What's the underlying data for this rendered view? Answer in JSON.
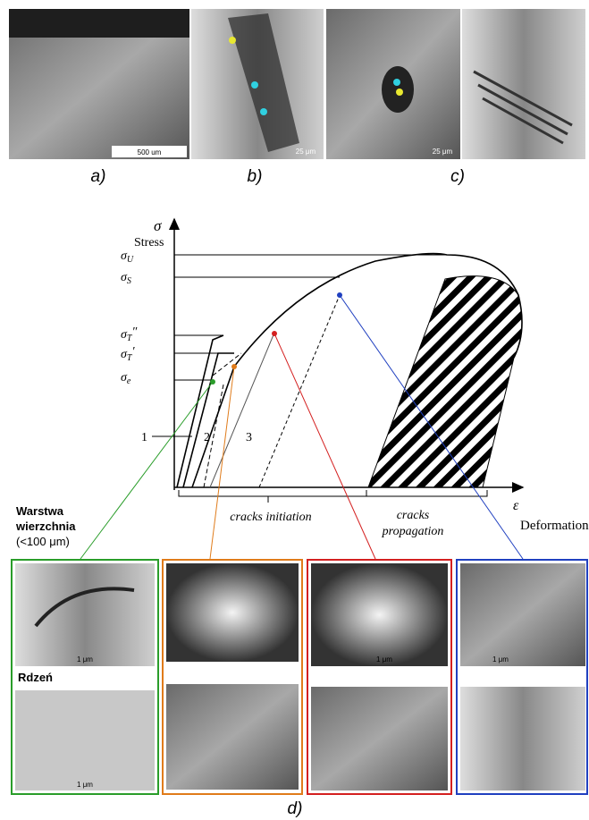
{
  "top_panels": {
    "labels": [
      "a)",
      "b)",
      "c)"
    ],
    "scale_bars": [
      "500 um",
      "25 μm",
      "25 μm"
    ]
  },
  "diagram": {
    "y_symbol": "σ",
    "y_label": "Stress",
    "x_symbol": "ε",
    "x_label": "Deformation",
    "stress_levels": [
      {
        "main": "σ",
        "sub": "U"
      },
      {
        "main": "σ",
        "sub": "S"
      },
      {
        "main": "σ",
        "sub": "T",
        "mark": "″"
      },
      {
        "main": "σ",
        "sub": "T",
        "mark": "′"
      },
      {
        "main": "σ",
        "sub": "e"
      }
    ],
    "curve_labels": [
      "1",
      "2",
      "3"
    ],
    "initiation": "cracks initiation",
    "propagation": [
      "cracks",
      "propagation"
    ]
  },
  "micrographs": {
    "surface_label": [
      "Warstwa",
      "wierzchnia"
    ],
    "surface_note": "(<100 μm)",
    "core_label": "Rdzeń",
    "scale_bars": [
      "1 μm",
      "1 μm",
      "1 μm",
      "1 μm"
    ]
  },
  "caption": "d)"
}
